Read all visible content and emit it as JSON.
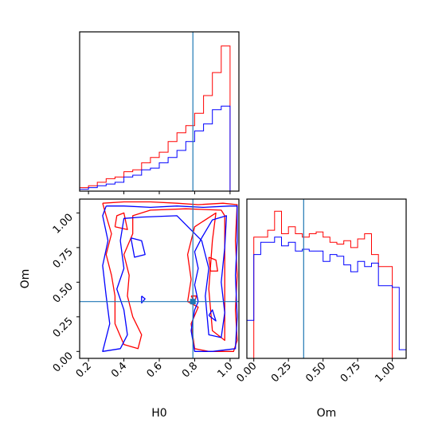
{
  "colors": {
    "series_a": "#ff0000",
    "series_b": "#0000ff",
    "truth": "#1f77b4",
    "frame": "#000000"
  },
  "chart_data": [
    {
      "type": "histogram",
      "panel": "top-left",
      "parameter": "H0",
      "xlim": [
        0.15,
        1.05
      ],
      "bins": [
        0.1,
        0.15,
        0.2,
        0.25,
        0.3,
        0.35,
        0.4,
        0.45,
        0.5,
        0.55,
        0.6,
        0.65,
        0.7,
        0.75,
        0.8,
        0.85,
        0.9,
        0.95,
        1.0,
        1.05
      ],
      "series": [
        {
          "color": "red",
          "counts": [
            0,
            2,
            3,
            5,
            7,
            8,
            11,
            12,
            16,
            19,
            22,
            28,
            33,
            37,
            44,
            54,
            67,
            82,
            0
          ]
        },
        {
          "color": "blue",
          "counts": [
            0,
            1,
            2,
            3,
            4,
            5,
            8,
            9,
            12,
            13,
            16,
            19,
            23,
            28,
            34,
            38,
            46,
            48,
            0
          ]
        }
      ],
      "truth_x": 0.79,
      "xticks": [
        "0.2",
        "0.4",
        "0.6",
        "0.8",
        "1.0"
      ],
      "show_tick_labels": false
    },
    {
      "type": "contour",
      "panel": "bottom-left",
      "xlim": [
        0.15,
        1.05
      ],
      "ylim": [
        -0.05,
        1.1
      ],
      "xlabel": "H0",
      "ylabel": "Om",
      "xticks": [
        "0.2",
        "0.4",
        "0.6",
        "0.8",
        "1.0"
      ],
      "yticks": [
        "0.00",
        "0.25",
        "0.50",
        "0.75",
        "1.00"
      ],
      "truth": {
        "x": 0.79,
        "y": 0.36
      },
      "series": [
        {
          "color": "red",
          "contours": [
            [
              [
                0.28,
                1.07
              ],
              [
                0.4,
                1.08
              ],
              [
                0.55,
                1.08
              ],
              [
                0.7,
                1.07
              ],
              [
                0.82,
                1.06
              ],
              [
                0.96,
                1.07
              ],
              [
                1.04,
                1.06
              ],
              [
                1.03,
                0.8
              ],
              [
                1.04,
                0.55
              ],
              [
                1.03,
                0.3
              ],
              [
                1.04,
                0.08
              ],
              [
                1.02,
                0.0
              ],
              [
                0.88,
                0.0
              ],
              [
                0.8,
                0.02
              ],
              [
                0.78,
                0.2
              ],
              [
                0.82,
                0.32
              ],
              [
                0.76,
                0.36
              ],
              [
                0.78,
                0.52
              ],
              [
                0.76,
                0.7
              ],
              [
                0.8,
                0.9
              ],
              [
                0.92,
                1.0
              ],
              [
                0.9,
                0.8
              ],
              [
                0.88,
                0.45
              ],
              [
                0.9,
                0.15
              ],
              [
                0.97,
                0.08
              ],
              [
                0.97,
                0.45
              ],
              [
                0.97,
                0.98
              ],
              [
                0.95,
                1.02
              ],
              [
                0.75,
                1.03
              ],
              [
                0.55,
                1.02
              ],
              [
                0.45,
                0.98
              ],
              [
                0.45,
                0.85
              ],
              [
                0.4,
                0.7
              ],
              [
                0.43,
                0.55
              ],
              [
                0.42,
                0.4
              ],
              [
                0.45,
                0.25
              ],
              [
                0.5,
                0.12
              ],
              [
                0.48,
                0.02
              ],
              [
                0.4,
                0.05
              ],
              [
                0.35,
                0.2
              ],
              [
                0.35,
                0.4
              ],
              [
                0.33,
                0.55
              ],
              [
                0.3,
                0.7
              ],
              [
                0.33,
                0.85
              ],
              [
                0.3,
                0.98
              ],
              [
                0.28,
                1.07
              ]
            ],
            [
              [
                0.35,
                0.9
              ],
              [
                0.42,
                0.88
              ],
              [
                0.4,
                1.0
              ],
              [
                0.36,
                0.98
              ],
              [
                0.35,
                0.9
              ]
            ],
            [
              [
                0.78,
                0.4
              ],
              [
                0.81,
                0.4
              ],
              [
                0.8,
                0.36
              ],
              [
                0.78,
                0.4
              ]
            ],
            [
              [
                0.88,
                0.68
              ],
              [
                0.92,
                0.66
              ],
              [
                0.93,
                0.58
              ],
              [
                0.89,
                0.58
              ],
              [
                0.88,
                0.68
              ]
            ]
          ]
        },
        {
          "color": "blue",
          "contours": [
            [
              [
                0.3,
                1.05
              ],
              [
                0.4,
                1.05
              ],
              [
                0.55,
                1.04
              ],
              [
                0.7,
                1.05
              ],
              [
                0.85,
                1.04
              ],
              [
                1.0,
                1.05
              ],
              [
                1.04,
                1.05
              ],
              [
                1.04,
                0.8
              ],
              [
                1.03,
                0.55
              ],
              [
                1.04,
                0.25
              ],
              [
                1.03,
                0.02
              ],
              [
                0.9,
                0.0
              ],
              [
                0.8,
                0.0
              ],
              [
                0.78,
                0.15
              ],
              [
                0.8,
                0.3
              ],
              [
                0.82,
                0.36
              ],
              [
                0.8,
                0.48
              ],
              [
                0.82,
                0.6
              ],
              [
                0.8,
                0.72
              ],
              [
                0.84,
                0.82
              ],
              [
                0.9,
                0.95
              ],
              [
                0.98,
                0.98
              ],
              [
                0.97,
                0.75
              ],
              [
                0.95,
                0.5
              ],
              [
                0.97,
                0.28
              ],
              [
                0.95,
                0.1
              ],
              [
                0.88,
                0.12
              ],
              [
                0.86,
                0.4
              ],
              [
                0.88,
                0.6
              ],
              [
                0.84,
                0.8
              ],
              [
                0.7,
                0.98
              ],
              [
                0.5,
                0.97
              ],
              [
                0.4,
                0.96
              ],
              [
                0.38,
                0.8
              ],
              [
                0.4,
                0.6
              ],
              [
                0.36,
                0.45
              ],
              [
                0.4,
                0.3
              ],
              [
                0.42,
                0.12
              ],
              [
                0.38,
                0.02
              ],
              [
                0.28,
                0.0
              ],
              [
                0.32,
                0.2
              ],
              [
                0.3,
                0.4
              ],
              [
                0.28,
                0.62
              ],
              [
                0.31,
                0.8
              ],
              [
                0.28,
                0.98
              ],
              [
                0.3,
                1.05
              ]
            ],
            [
              [
                0.44,
                0.82
              ],
              [
                0.5,
                0.8
              ],
              [
                0.52,
                0.7
              ],
              [
                0.46,
                0.68
              ],
              [
                0.44,
                0.82
              ]
            ],
            [
              [
                0.5,
                0.4
              ],
              [
                0.52,
                0.38
              ],
              [
                0.5,
                0.35
              ],
              [
                0.5,
                0.4
              ]
            ],
            [
              [
                0.88,
                0.26
              ],
              [
                0.92,
                0.22
              ],
              [
                0.9,
                0.3
              ],
              [
                0.88,
                0.26
              ]
            ]
          ]
        }
      ]
    },
    {
      "type": "histogram",
      "panel": "bottom-right",
      "xlim": [
        -0.05,
        1.1
      ],
      "xlabel": "Om",
      "xticks": [
        "0.00",
        "0.25",
        "0.50",
        "0.75",
        "1.00"
      ],
      "bins": [
        -0.05,
        0.0,
        0.05,
        0.1,
        0.15,
        0.2,
        0.25,
        0.3,
        0.35,
        0.4,
        0.45,
        0.5,
        0.55,
        0.6,
        0.65,
        0.7,
        0.75,
        0.8,
        0.85,
        0.9,
        0.95,
        1.0,
        1.05,
        1.1
      ],
      "series": [
        {
          "color": "red",
          "counts": [
            0,
            70,
            70,
            74,
            85,
            72,
            76,
            72,
            70,
            72,
            73,
            70,
            67,
            66,
            68,
            64,
            69,
            72,
            60,
            53,
            53,
            0,
            0
          ]
        },
        {
          "color": "blue",
          "counts": [
            22,
            60,
            67,
            67,
            70,
            65,
            67,
            62,
            63,
            62,
            62,
            56,
            60,
            59,
            54,
            50,
            56,
            53,
            55,
            42,
            42,
            41,
            5
          ]
        }
      ],
      "truth_x": 0.36,
      "show_tick_labels": true
    }
  ]
}
